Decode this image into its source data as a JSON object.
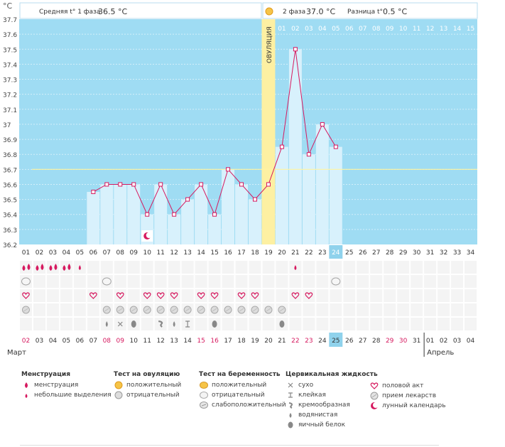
{
  "unit": "°C",
  "header": {
    "phase1_label": "Средняя t° 1 фаза",
    "phase1_value": "36.5 °C",
    "phase2_label": "2 фаза",
    "phase2_value": "37.0 °C",
    "diff_label": "Разница t°",
    "diff_value": "0.5 °C"
  },
  "ovulation_label": "ОВУЛЯЦИЯ",
  "cycle_day_labels": [
    "01",
    "02",
    "03",
    "04",
    "05",
    "06",
    "07",
    "08",
    "09",
    "10",
    "11",
    "12",
    "13",
    "14",
    "15",
    "16",
    "17",
    "18",
    "19",
    "20",
    "21",
    "22",
    "23",
    "24",
    "25",
    "26",
    "27",
    "28",
    "29",
    "30",
    "31",
    "32",
    "33",
    "34"
  ],
  "phase2_day_labels": [
    "01",
    "02",
    "03",
    "04",
    "05",
    "06",
    "07",
    "08",
    "09",
    "10",
    "11",
    "12",
    "13",
    "14",
    "15"
  ],
  "calendar_dates": [
    "02",
    "03",
    "04",
    "05",
    "06",
    "07",
    "08",
    "09",
    "10",
    "11",
    "12",
    "13",
    "14",
    "15",
    "16",
    "17",
    "18",
    "19",
    "20",
    "21",
    "22",
    "23",
    "24",
    "25",
    "26",
    "27",
    "28",
    "29",
    "30",
    "31",
    "01",
    "02",
    "03",
    "04"
  ],
  "weekend_date_indices": [
    0,
    6,
    7,
    13,
    14,
    20,
    21,
    27,
    28
  ],
  "today_index": 23,
  "months": [
    {
      "label": "Март"
    },
    {
      "label": "Апрель"
    }
  ],
  "colors": {
    "chart_bg": "#9fdcf3",
    "bar": "#d8f1fc",
    "ovulation_band": "#fdf0a2",
    "line": "#d6195f",
    "coverline": "#fff3a0",
    "today": "#8fd2ec",
    "weekend_text": "#d6195f"
  },
  "chart_data": {
    "type": "line",
    "title": "",
    "ylabel": "°C",
    "ylim": [
      36.2,
      37.7
    ],
    "yticks": [
      "37.7",
      "37.6",
      "37.5",
      "37.4",
      "37.3",
      "37.2",
      "37.1",
      "37",
      "36.9",
      "36.8",
      "36.7",
      "36.6",
      "36.5",
      "36.4",
      "36.3",
      "36.2"
    ],
    "coverline": 36.7,
    "ovulation_day": 19,
    "x": [
      6,
      7,
      8,
      9,
      10,
      11,
      12,
      13,
      14,
      15,
      16,
      17,
      18,
      19,
      20,
      21,
      22,
      23,
      24
    ],
    "values": [
      36.55,
      36.6,
      36.6,
      36.6,
      36.4,
      36.6,
      36.4,
      36.5,
      36.6,
      36.4,
      36.7,
      36.6,
      36.5,
      36.6,
      36.85,
      37.5,
      36.8,
      37.0,
      36.85
    ]
  },
  "markers": {
    "menstruation_big": [
      1,
      2,
      3,
      4
    ],
    "menstruation_small": [
      5,
      21
    ],
    "ovulation_negative": [
      1,
      7,
      24
    ],
    "intercourse": [
      1,
      6,
      8,
      10,
      11,
      12,
      14,
      15,
      17,
      18,
      21,
      22
    ],
    "medication": [
      1,
      7,
      8,
      9,
      10,
      11,
      12,
      13,
      14,
      15,
      16,
      17,
      18,
      19,
      20
    ],
    "cervical": [
      {
        "day": 7,
        "kind": "watery"
      },
      {
        "day": 8,
        "kind": "dry"
      },
      {
        "day": 9,
        "kind": "eggwhite"
      },
      {
        "day": 11,
        "kind": "creamy"
      },
      {
        "day": 12,
        "kind": "watery"
      },
      {
        "day": 13,
        "kind": "sticky"
      },
      {
        "day": 15,
        "kind": "eggwhite"
      },
      {
        "day": 20,
        "kind": "eggwhite"
      }
    ],
    "lunar_day": 10
  },
  "legend": {
    "menstruation": {
      "title": "Менструация",
      "items": [
        "менструация",
        "небольшие выделения"
      ]
    },
    "ovulation_test": {
      "title": "Тест на овуляцию",
      "items": [
        "положительный",
        "отрицательный"
      ]
    },
    "pregnancy_test": {
      "title": "Тест на беременность",
      "items": [
        "положительный",
        "отрицательный",
        "слабоположительный"
      ]
    },
    "cervical": {
      "title": "Цервикальная жидкость",
      "items": [
        "сухо",
        "клейкая",
        "кремообразная",
        "водянистая",
        "яичный белок"
      ]
    },
    "other": {
      "items": [
        "половой акт",
        "прием лекарств",
        "лунный календарь"
      ]
    }
  }
}
